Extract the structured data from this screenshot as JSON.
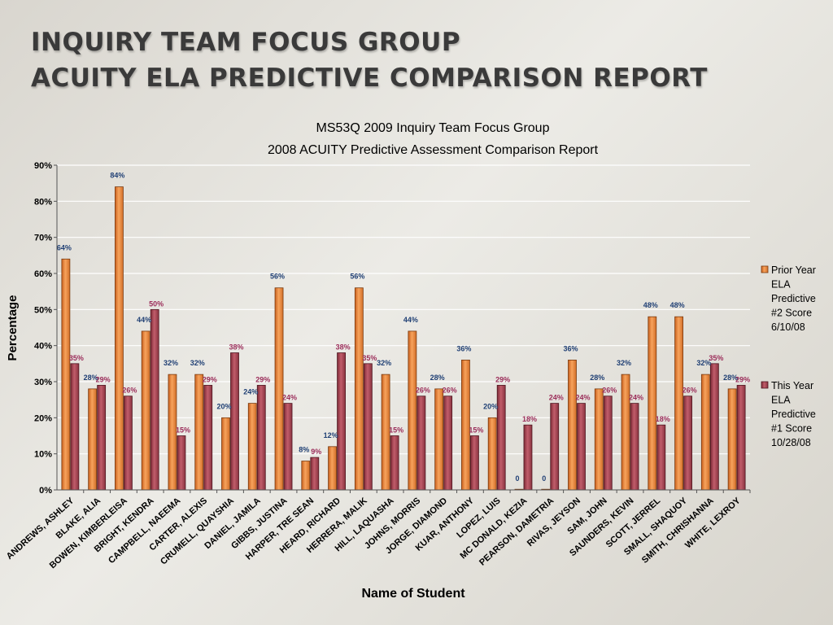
{
  "slide": {
    "title_line1": "INQUIRY TEAM FOCUS GROUP",
    "title_line2": "ACUITY ELA PREDICTIVE COMPARISON REPORT"
  },
  "chart_data": {
    "type": "bar",
    "title": "MS53Q 2009 Inquiry Team Focus Group",
    "subtitle": "2008 ACUITY Predictive Assessment Comparison Report",
    "xlabel": "Name of Student",
    "ylabel": "Percentage",
    "ylim": [
      0,
      90
    ],
    "yticks": [
      "0%",
      "10%",
      "20%",
      "30%",
      "40%",
      "50%",
      "60%",
      "70%",
      "80%",
      "90%"
    ],
    "grid": true,
    "legend_position": "right",
    "categories": [
      "ANDREWS, ASHLEY",
      "BLAKE, ALIA",
      "BOWEN, KIMBERLEISA",
      "BRIGHT, KENDRA",
      "CAMPBELL, NAEEMA",
      "CARTER, ALEXIS",
      "CRUMELL, QUAYSHIA",
      "DANIEL, JAMILA",
      "GIBBS, JUSTINA",
      "HARPER, TRE SEAN",
      "HEARD, RICHARD",
      "HERRERA, MALIK",
      "HILL, LAQUASHA",
      "JOHNS, MORRIS",
      "JORGE, DIAMOND",
      "KUAR, ANTHONY",
      "LOPEZ, LUIS",
      "MC DONALD, KEZIA",
      "PEARSON, DAMETRIA",
      "RIVAS, JEYSON",
      "SAM, JOHN",
      "SAUNDERS, KEVIN",
      "SCOTT, JERREL",
      "SMALL, SHAQUOY",
      "SMITH, CHRISHANNA",
      "WHITE, LEXROY"
    ],
    "series": [
      {
        "name": "Prior Year ELA Predictive #2 Score 6/10/08",
        "legend_lines": [
          "Prior Year",
          "ELA",
          "Predictive",
          "#2   Score",
          "6/10/08"
        ],
        "color": "#f08c3c",
        "label_color": "#1f3f74",
        "values": [
          64,
          28,
          84,
          44,
          32,
          32,
          20,
          24,
          56,
          8,
          12,
          56,
          32,
          44,
          28,
          36,
          20,
          0,
          0,
          36,
          28,
          32,
          48,
          48,
          32,
          28
        ],
        "labels": [
          "64%",
          "28%",
          "84%",
          "44%",
          "32%",
          "32%",
          "20%",
          "24%",
          "56%",
          "8%",
          "12%",
          "56%",
          "32%",
          "44%",
          "28%",
          "36%",
          "20%",
          "0",
          "0",
          "36%",
          "28%",
          "32%",
          "48%",
          "48%",
          "32%",
          "28%"
        ]
      },
      {
        "name": "This Year ELA Predictive #1 Score 10/28/08",
        "legend_lines": [
          "This Year",
          "ELA",
          "Predictive",
          "#1   Score",
          "10/28/08"
        ],
        "color": "#a84452",
        "label_color": "#9b2d5a",
        "values": [
          35,
          29,
          26,
          50,
          15,
          29,
          38,
          29,
          24,
          9,
          38,
          35,
          15,
          26,
          26,
          15,
          29,
          18,
          24,
          24,
          26,
          24,
          18,
          26,
          35,
          29
        ],
        "labels": [
          "35%",
          "29%",
          "26%",
          "50%",
          "15%",
          "29%",
          "38%",
          "29%",
          "24%",
          "9%",
          "38%",
          "35%",
          "15%",
          "26%",
          "26%",
          "15%",
          "29%",
          "18%",
          "24%",
          "24%",
          "26%",
          "24%",
          "18%",
          "26%",
          "35%",
          "29%"
        ]
      }
    ]
  }
}
